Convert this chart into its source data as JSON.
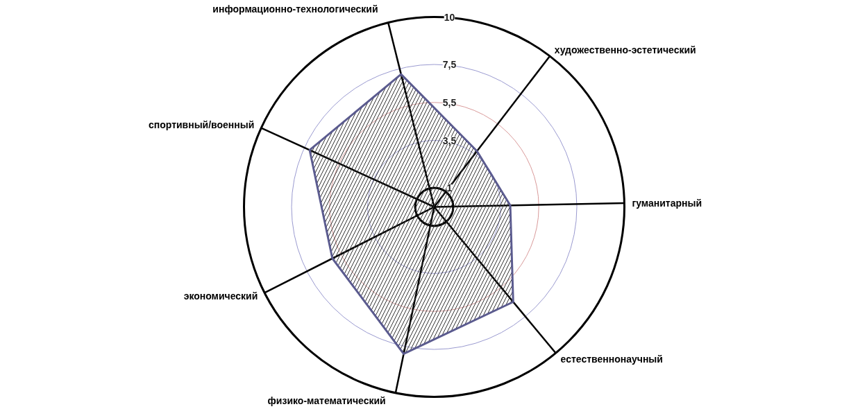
{
  "chart_data": {
    "type": "radar",
    "categories": [
      "информационно-технологический",
      "художественно-эстетический",
      "гуманитарный",
      "естественнонаучный",
      "физико-математический",
      "экономический",
      "спортивный/военный"
    ],
    "series": [
      {
        "color": "#5b5b8f",
        "values": [
          7.2,
          3.7,
          4.0,
          6.5,
          7.9,
          6.0,
          7.2
        ]
      }
    ],
    "ylim": [
      0,
      10
    ],
    "yticks": [
      1,
      {
        "value": 3.5,
        "label": "3,5"
      },
      {
        "value": 5.5,
        "label": "5,5"
      },
      {
        "value": 7.5,
        "label": "7,5"
      },
      10
    ],
    "grid": true
  }
}
